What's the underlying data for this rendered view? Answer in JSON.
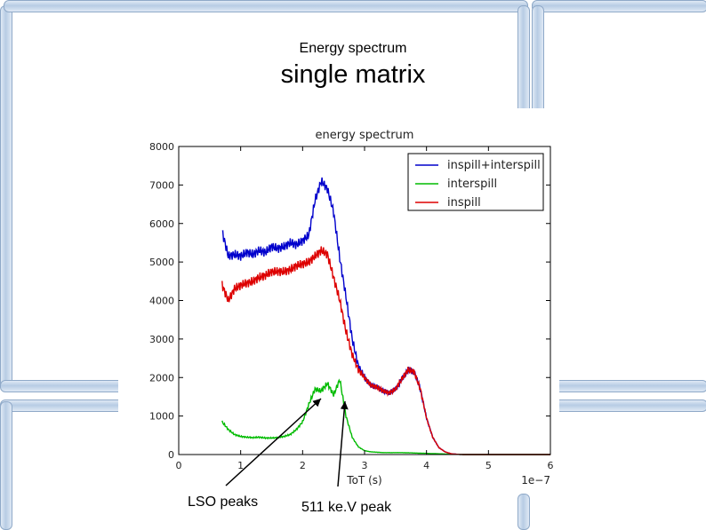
{
  "slide": {
    "title_small": "Energy spectrum",
    "title_large": "single matrix"
  },
  "annotations": {
    "lso": "LSO peaks",
    "peak_511": "511 ke.V peak"
  },
  "chart_data": {
    "type": "line",
    "title": "energy spectrum",
    "xlabel": "ToT (s)",
    "ylabel": "",
    "x_multiplier": "1e−7",
    "xlim": [
      0,
      6
    ],
    "ylim": [
      0,
      8000
    ],
    "xticks": [
      0,
      1,
      2,
      3,
      4,
      5,
      6
    ],
    "yticks": [
      0,
      1000,
      2000,
      3000,
      4000,
      5000,
      6000,
      7000,
      8000
    ],
    "legend_position": "top-right",
    "grid": false,
    "x": [
      0.7,
      0.8,
      0.9,
      1.0,
      1.1,
      1.2,
      1.3,
      1.4,
      1.5,
      1.6,
      1.7,
      1.8,
      1.9,
      2.0,
      2.1,
      2.2,
      2.3,
      2.4,
      2.5,
      2.6,
      2.7,
      2.8,
      2.9,
      3.0,
      3.1,
      3.2,
      3.3,
      3.4,
      3.5,
      3.6,
      3.7,
      3.8,
      3.9,
      4.0,
      4.1,
      4.2,
      4.3,
      4.4,
      4.5,
      4.6,
      4.7,
      4.8,
      4.9,
      5.0,
      5.2,
      5.4,
      5.6,
      5.8,
      6.0
    ],
    "series": [
      {
        "name": "inspill+interspill",
        "color": "#0000cc",
        "values": [
          5800,
          5150,
          5200,
          5150,
          5250,
          5200,
          5300,
          5250,
          5400,
          5350,
          5400,
          5500,
          5450,
          5550,
          5700,
          6600,
          7100,
          6900,
          6300,
          5100,
          4100,
          3000,
          2300,
          2000,
          1800,
          1750,
          1650,
          1600,
          1700,
          1950,
          2200,
          2150,
          1700,
          950,
          450,
          180,
          70,
          20,
          5,
          0,
          0,
          0,
          0,
          0,
          0,
          0,
          0,
          0,
          0
        ]
      },
      {
        "name": "interspill",
        "color": "#00bb00",
        "values": [
          850,
          650,
          520,
          470,
          450,
          440,
          450,
          430,
          430,
          440,
          470,
          520,
          650,
          850,
          1300,
          1700,
          1650,
          1850,
          1550,
          1950,
          1000,
          450,
          200,
          100,
          70,
          60,
          50,
          50,
          50,
          50,
          45,
          40,
          35,
          30,
          25,
          20,
          15,
          10,
          5,
          0,
          0,
          0,
          0,
          0,
          0,
          0,
          0,
          0,
          0
        ]
      },
      {
        "name": "inspill",
        "color": "#dd0000",
        "values": [
          4400,
          4000,
          4300,
          4400,
          4450,
          4500,
          4600,
          4650,
          4750,
          4750,
          4750,
          4800,
          4900,
          4950,
          5000,
          5150,
          5300,
          5200,
          4600,
          4000,
          3200,
          2600,
          2200,
          2000,
          1800,
          1750,
          1650,
          1600,
          1700,
          1950,
          2200,
          2150,
          1700,
          950,
          450,
          180,
          70,
          20,
          5,
          0,
          0,
          0,
          0,
          0,
          0,
          0,
          0,
          0,
          0
        ]
      }
    ]
  }
}
